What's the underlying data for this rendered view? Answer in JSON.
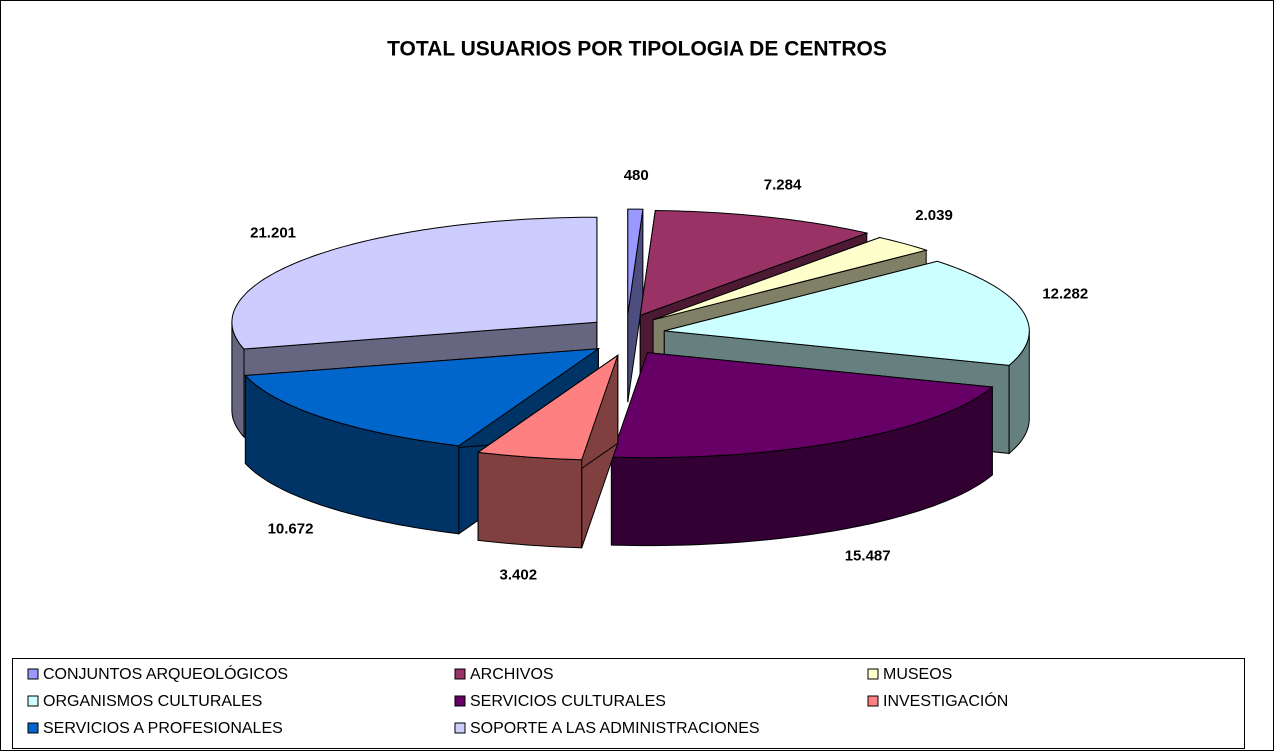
{
  "chart_data": {
    "type": "pie3d",
    "title": "TOTAL USUARIOS POR TIPOLOGIA DE CENTROS",
    "categories": [
      "CONJUNTOS ARQUEOLÓGICOS",
      "ARCHIVOS",
      "MUSEOS",
      "ORGANISMOS CULTURALES",
      "SERVICIOS CULTURALES",
      "INVESTIGACIÓN",
      "SERVICIOS A PROFESIONALES",
      "SOPORTE A LAS ADMINISTRACIONES"
    ],
    "values": [
      480,
      7284,
      2039,
      12282,
      15487,
      3402,
      10672,
      21201
    ],
    "value_labels": [
      "480",
      "7.284",
      "2.039",
      "12.282",
      "15.487",
      "3.402",
      "10.672",
      "21.201"
    ],
    "colors": [
      "#9999ff",
      "#993366",
      "#ffffcc",
      "#ccffff",
      "#660066",
      "#ff8080",
      "#0066cc",
      "#ccccff"
    ],
    "legend": "bottom"
  }
}
